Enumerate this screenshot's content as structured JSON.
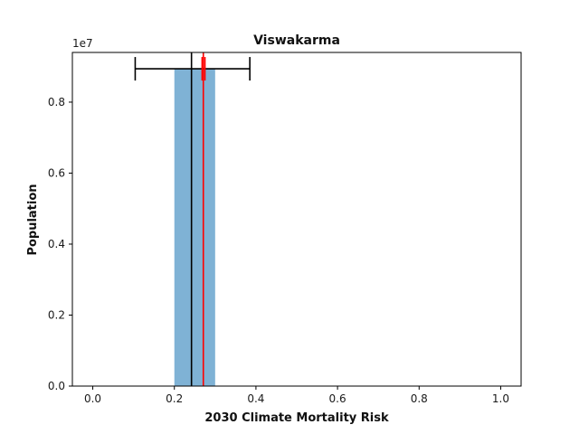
{
  "chart_data": {
    "type": "bar",
    "title": "Viswakarma",
    "xlabel": "2030 Climate Mortality Risk",
    "ylabel": "Population",
    "y_offset_label": "1e7",
    "xlim": [
      -0.05,
      1.05
    ],
    "ylim": [
      0,
      9.4
    ],
    "x_ticks": [
      0.0,
      0.2,
      0.4,
      0.6,
      0.8,
      1.0
    ],
    "x_tick_labels": [
      "0.0",
      "0.2",
      "0.4",
      "0.6",
      "0.8",
      "1.0"
    ],
    "y_ticks": [
      0.0,
      0.2,
      0.4,
      0.6,
      0.8
    ],
    "y_tick_labels": [
      "0.0",
      "0.2",
      "0.4",
      "0.6",
      "0.8"
    ],
    "y_tick_scale": 10,
    "bars": [
      {
        "x_start": 0.2,
        "x_end": 0.3,
        "value": 8.94,
        "color": "#7fb2d5"
      }
    ],
    "vertical_lines": [
      {
        "x": 0.242,
        "color": "#000000"
      },
      {
        "x": 0.271,
        "color": "#ff0000"
      }
    ],
    "error_bar": {
      "y": 8.94,
      "x_low": 0.104,
      "x_high": 0.385,
      "color": "#000000"
    },
    "red_error_bar": {
      "y": 8.94,
      "x_low": 0.268,
      "x_high": 0.275,
      "color": "#ff0000"
    },
    "grid": false
  }
}
